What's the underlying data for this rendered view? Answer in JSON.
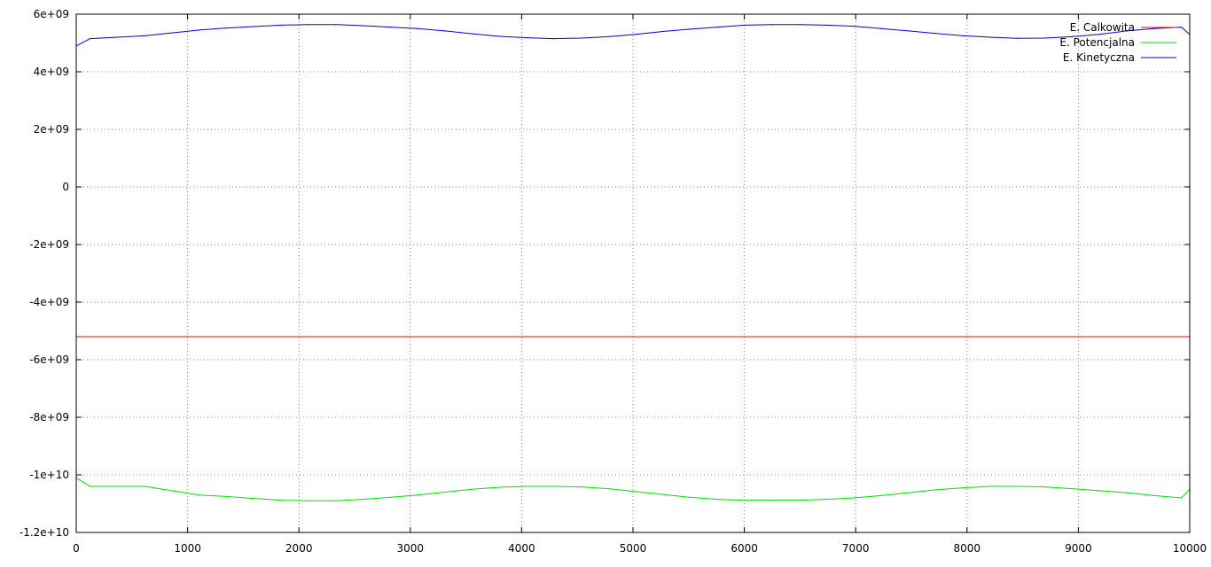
{
  "chart_data": {
    "type": "line",
    "title": "",
    "xlabel": "",
    "ylabel": "",
    "xlim": [
      0,
      10000
    ],
    "ylim": [
      -12000000000,
      6000000000
    ],
    "x_ticks": [
      0,
      1000,
      2000,
      3000,
      4000,
      5000,
      6000,
      7000,
      8000,
      9000,
      10000
    ],
    "x_tick_labels": [
      "0",
      "1000",
      "2000",
      "3000",
      "4000",
      "5000",
      "6000",
      "7000",
      "8000",
      "9000",
      "10000"
    ],
    "y_ticks": [
      6000000000,
      4000000000,
      2000000000,
      0,
      -2000000000,
      -4000000000,
      -6000000000,
      -8000000000,
      -10000000000,
      -12000000000
    ],
    "y_tick_labels": [
      "6e+09",
      "4e+09",
      "2e+09",
      "0",
      "-2e+09",
      "-4e+09",
      "-6e+09",
      "-8e+09",
      "-1e+10",
      "-1.2e+10"
    ],
    "grid": true,
    "legend_position": "top-right",
    "series": [
      {
        "name": "E. Calkowita",
        "color": "#ff0000",
        "x": [
          0,
          10000
        ],
        "y": [
          -5200000000,
          -5200000000
        ]
      },
      {
        "name": "E. Potencjalna",
        "color": "#00e000",
        "x": [
          0,
          125,
          370,
          615,
          860,
          1105,
          1350,
          1595,
          1840,
          2085,
          2330,
          2575,
          2820,
          3065,
          3310,
          3555,
          3800,
          4045,
          4290,
          4535,
          4780,
          5025,
          5270,
          5515,
          5760,
          6005,
          6250,
          6495,
          6740,
          6985,
          7230,
          7475,
          7720,
          7965,
          8210,
          8455,
          8700,
          8945,
          9190,
          9435,
          9680,
          9925,
          10000
        ],
        "y": [
          -10100000000,
          -10400000000,
          -10400000000,
          -10400000000,
          -10550000000,
          -10700000000,
          -10750000000,
          -10820000000,
          -10880000000,
          -10900000000,
          -10900000000,
          -10850000000,
          -10780000000,
          -10700000000,
          -10600000000,
          -10500000000,
          -10430000000,
          -10400000000,
          -10400000000,
          -10420000000,
          -10480000000,
          -10580000000,
          -10680000000,
          -10780000000,
          -10850000000,
          -10880000000,
          -10880000000,
          -10880000000,
          -10850000000,
          -10800000000,
          -10720000000,
          -10620000000,
          -10520000000,
          -10450000000,
          -10400000000,
          -10400000000,
          -10420000000,
          -10480000000,
          -10550000000,
          -10620000000,
          -10720000000,
          -10800000000,
          -10500000000
        ]
      },
      {
        "name": "E. Kinetyczna",
        "color": "#0000e0",
        "x": [
          0,
          125,
          370,
          615,
          860,
          1105,
          1350,
          1595,
          1840,
          2085,
          2330,
          2575,
          2820,
          3065,
          3310,
          3555,
          3800,
          4045,
          4290,
          4535,
          4780,
          5025,
          5270,
          5515,
          5760,
          6005,
          6250,
          6495,
          6740,
          6985,
          7230,
          7475,
          7720,
          7965,
          8210,
          8455,
          8700,
          8945,
          9190,
          9435,
          9680,
          9925,
          10000
        ],
        "y": [
          4900000000,
          5150000000,
          5200000000,
          5250000000,
          5350000000,
          5450000000,
          5520000000,
          5570000000,
          5620000000,
          5640000000,
          5640000000,
          5600000000,
          5550000000,
          5500000000,
          5420000000,
          5320000000,
          5230000000,
          5180000000,
          5150000000,
          5170000000,
          5220000000,
          5300000000,
          5400000000,
          5480000000,
          5550000000,
          5620000000,
          5640000000,
          5640000000,
          5620000000,
          5580000000,
          5500000000,
          5420000000,
          5330000000,
          5250000000,
          5200000000,
          5160000000,
          5170000000,
          5220000000,
          5300000000,
          5420000000,
          5500000000,
          5550000000,
          5300000000
        ]
      }
    ]
  }
}
